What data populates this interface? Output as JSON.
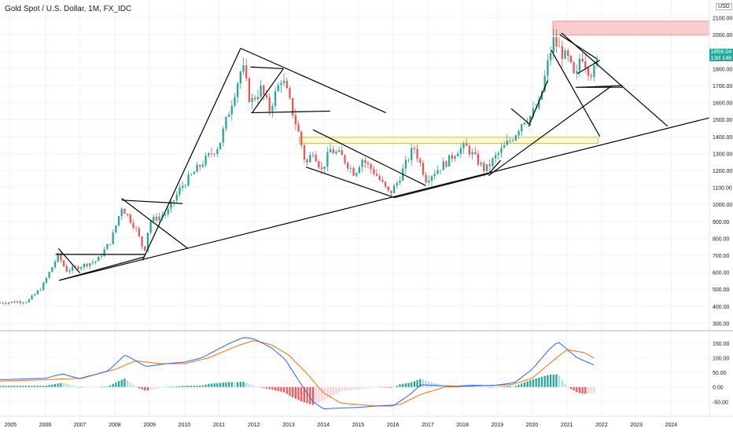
{
  "header": {
    "title": "Gold Spot / U.S. Dollar, 1M, FX_IDC",
    "currency": "USD"
  },
  "price_box": {
    "last": "1859.04",
    "countdown": "13d 14h"
  },
  "colors": {
    "up": "#26a69a",
    "down": "#ef5350",
    "macd": "#2962ff",
    "signal": "#ff6d00",
    "hist_up_strong": "#26a69a",
    "hist_up_weak": "#b2dfdb",
    "hist_down_strong": "#ff5252",
    "hist_down_weak": "#ffcdd2",
    "trendline": "#000000",
    "resistance_zone": "#f8c0c0",
    "support_zone": "#fff5cc"
  },
  "chart_data": [
    {
      "type": "candlestick",
      "title": "",
      "x_axis": {
        "ticks": [
          "2005",
          "2006",
          "2007",
          "2008",
          "2009",
          "2010",
          "2011",
          "2012",
          "2013",
          "2014",
          "2015",
          "2016",
          "2017",
          "2018",
          "2019",
          "2020",
          "2021",
          "2022",
          "2023",
          "2024"
        ],
        "range": [
          2004.7,
          2025.1
        ]
      },
      "y_axis": {
        "ticks": [
          "2100.00",
          "2000.00",
          "1900.00",
          "1800.00",
          "1700.00",
          "1600.00",
          "1500.00",
          "1400.00",
          "1300.00",
          "1200.00",
          "1100.00",
          "1000.00",
          "900.00",
          "800.00",
          "700.00",
          "600.00",
          "500.00",
          "400.00",
          "300.00"
        ],
        "range": [
          260,
          2140
        ]
      },
      "anchors": [
        [
          2004.7,
          420
        ],
        [
          2005.5,
          430
        ],
        [
          2005.9,
          510
        ],
        [
          2006.37,
          700
        ],
        [
          2006.6,
          610
        ],
        [
          2007.0,
          635
        ],
        [
          2007.5,
          670
        ],
        [
          2007.9,
          790
        ],
        [
          2008.2,
          985
        ],
        [
          2008.6,
          860
        ],
        [
          2008.85,
          720
        ],
        [
          2009.0,
          900
        ],
        [
          2009.5,
          950
        ],
        [
          2009.9,
          1100
        ],
        [
          2010.5,
          1240
        ],
        [
          2011.0,
          1350
        ],
        [
          2011.67,
          1820
        ],
        [
          2011.9,
          1600
        ],
        [
          2012.2,
          1680
        ],
        [
          2012.45,
          1560
        ],
        [
          2012.8,
          1750
        ],
        [
          2012.95,
          1660
        ],
        [
          2013.3,
          1410
        ],
        [
          2013.5,
          1230
        ],
        [
          2013.7,
          1320
        ],
        [
          2013.95,
          1200
        ],
        [
          2014.2,
          1320
        ],
        [
          2014.5,
          1290
        ],
        [
          2014.9,
          1180
        ],
        [
          2015.1,
          1270
        ],
        [
          2015.5,
          1180
        ],
        [
          2015.9,
          1060
        ],
        [
          2016.1,
          1120
        ],
        [
          2016.6,
          1340
        ],
        [
          2016.95,
          1150
        ],
        [
          2017.6,
          1260
        ],
        [
          2017.85,
          1320
        ],
        [
          2018.1,
          1340
        ],
        [
          2018.65,
          1200
        ],
        [
          2018.95,
          1280
        ],
        [
          2019.5,
          1410
        ],
        [
          2019.75,
          1500
        ],
        [
          2019.95,
          1520
        ],
        [
          2020.2,
          1590
        ],
        [
          2020.6,
          1970
        ],
        [
          2020.9,
          1880
        ],
        [
          2021.05,
          1850
        ],
        [
          2021.25,
          1720
        ],
        [
          2021.4,
          1900
        ],
        [
          2021.6,
          1800
        ],
        [
          2021.75,
          1770
        ],
        [
          2021.9,
          1859
        ]
      ],
      "zones": [
        {
          "name": "resistance-zone",
          "price": [
            2000,
            2080
          ],
          "x": [
            2020.6,
            2025.1
          ]
        },
        {
          "name": "support-zone",
          "price": [
            1360,
            1395
          ],
          "x": [
            2013.3,
            2021.9
          ]
        }
      ],
      "trendlines": [
        [
          [
            2006.4,
            552
          ],
          [
            2025.1,
            1510
          ]
        ],
        [
          [
            2006.3,
            705
          ],
          [
            2008.9,
            705
          ]
        ],
        [
          [
            2006.38,
            740
          ],
          [
            2007.0,
            595
          ]
        ],
        [
          [
            2006.4,
            552
          ],
          [
            2008.85,
            690
          ]
        ],
        [
          [
            2008.2,
            1025
          ],
          [
            2009.95,
            1005
          ]
        ],
        [
          [
            2008.2,
            1035
          ],
          [
            2010.1,
            740
          ]
        ],
        [
          [
            2008.8,
            670
          ],
          [
            2011.62,
            1920
          ]
        ],
        [
          [
            2011.62,
            1920
          ],
          [
            2015.8,
            1540
          ]
        ],
        [
          [
            2011.9,
            1810
          ],
          [
            2012.85,
            1800
          ]
        ],
        [
          [
            2011.92,
            1540
          ],
          [
            2014.2,
            1550
          ]
        ],
        [
          [
            2011.95,
            1540
          ],
          [
            2012.85,
            1800
          ]
        ],
        [
          [
            2013.7,
            1440
          ],
          [
            2016.95,
            1110
          ]
        ],
        [
          [
            2013.5,
            1220
          ],
          [
            2016.05,
            1040
          ]
        ],
        [
          [
            2016.05,
            1040
          ],
          [
            2018.75,
            1180
          ]
        ],
        [
          [
            2018.75,
            1180
          ],
          [
            2019.1,
            1260
          ]
        ],
        [
          [
            2018.75,
            1170
          ],
          [
            2022.3,
            1700
          ]
        ],
        [
          [
            2019.4,
            1565
          ],
          [
            2019.95,
            1470
          ]
        ],
        [
          [
            2019.9,
            1460
          ],
          [
            2020.45,
            1730
          ]
        ],
        [
          [
            2020.55,
            1910
          ],
          [
            2021.95,
            1400
          ]
        ],
        [
          [
            2020.8,
            2000
          ],
          [
            2021.85,
            1860
          ]
        ],
        [
          [
            2021.3,
            1770
          ],
          [
            2021.95,
            1850
          ]
        ],
        [
          [
            2021.25,
            1690
          ],
          [
            2022.6,
            1690
          ]
        ],
        [
          [
            2020.85,
            2010
          ],
          [
            2023.9,
            1460
          ]
        ],
        [
          [
            2021.3,
            1690
          ],
          [
            2022.6,
            1700
          ]
        ]
      ]
    },
    {
      "type": "macd",
      "title": "",
      "y_axis": {
        "ticks": [
          "150.00",
          "100.00",
          "50.00",
          "0.00",
          "-50.00"
        ],
        "range": [
          -95,
          185
        ]
      },
      "macd_anchors": [
        [
          2004.7,
          25
        ],
        [
          2006.0,
          30
        ],
        [
          2006.5,
          45
        ],
        [
          2007.0,
          28
        ],
        [
          2007.8,
          55
        ],
        [
          2008.3,
          110
        ],
        [
          2008.9,
          70
        ],
        [
          2009.5,
          80
        ],
        [
          2010.0,
          85
        ],
        [
          2010.5,
          100
        ],
        [
          2011.3,
          150
        ],
        [
          2011.72,
          170
        ],
        [
          2012.0,
          165
        ],
        [
          2012.5,
          135
        ],
        [
          2012.9,
          95
        ],
        [
          2013.3,
          20
        ],
        [
          2013.7,
          -50
        ],
        [
          2014.0,
          -75
        ],
        [
          2014.5,
          -72
        ],
        [
          2015.0,
          -70
        ],
        [
          2015.5,
          -65
        ],
        [
          2016.0,
          -65
        ],
        [
          2016.5,
          -25
        ],
        [
          2016.8,
          8
        ],
        [
          2017.3,
          5
        ],
        [
          2017.8,
          3
        ],
        [
          2018.3,
          6
        ],
        [
          2018.9,
          5
        ],
        [
          2019.5,
          15
        ],
        [
          2020.0,
          60
        ],
        [
          2020.5,
          130
        ],
        [
          2020.75,
          155
        ],
        [
          2021.0,
          130
        ],
        [
          2021.3,
          100
        ],
        [
          2021.6,
          85
        ],
        [
          2021.85,
          72
        ]
      ],
      "signal_anchors": [
        [
          2004.7,
          20
        ],
        [
          2006.0,
          25
        ],
        [
          2007.0,
          30
        ],
        [
          2008.0,
          60
        ],
        [
          2008.6,
          90
        ],
        [
          2009.3,
          80
        ],
        [
          2010.0,
          80
        ],
        [
          2010.7,
          100
        ],
        [
          2011.5,
          140
        ],
        [
          2012.0,
          160
        ],
        [
          2012.5,
          145
        ],
        [
          2013.0,
          110
        ],
        [
          2013.5,
          50
        ],
        [
          2014.0,
          -20
        ],
        [
          2014.5,
          -55
        ],
        [
          2015.5,
          -65
        ],
        [
          2016.2,
          -60
        ],
        [
          2016.8,
          -25
        ],
        [
          2017.5,
          0
        ],
        [
          2018.5,
          4
        ],
        [
          2019.4,
          8
        ],
        [
          2020.0,
          30
        ],
        [
          2020.6,
          90
        ],
        [
          2021.0,
          128
        ],
        [
          2021.5,
          118
        ],
        [
          2021.85,
          95
        ]
      ]
    }
  ]
}
